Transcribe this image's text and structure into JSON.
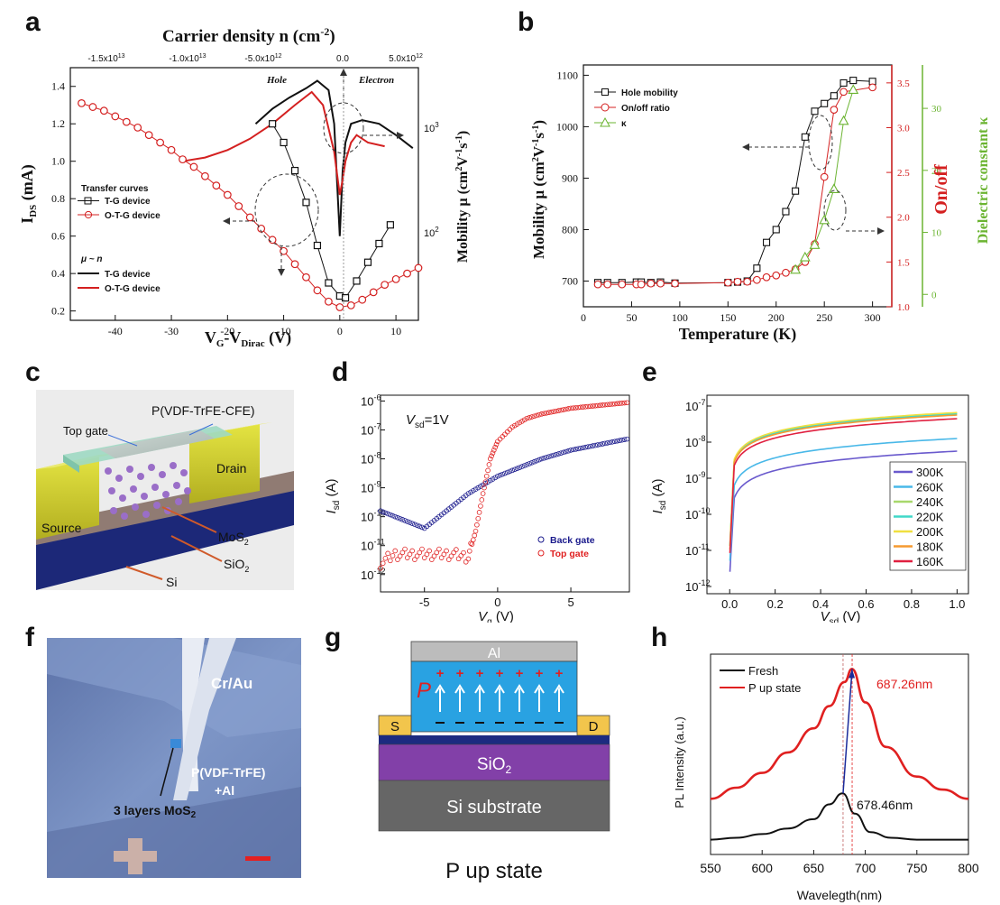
{
  "figure": {
    "panel_labels": [
      "a",
      "b",
      "c",
      "d",
      "e",
      "f",
      "g",
      "h"
    ]
  },
  "panel_a": {
    "top_axis_title": "Carrier density n (cm",
    "top_axis_title_sup": "-2",
    "top_axis_title_end": ")",
    "top_ticks": [
      "-1.5x10",
      "-1.0x10",
      "-5.0x10",
      "0.0",
      "5.0x10"
    ],
    "top_ticks_exp": [
      "13",
      "13",
      "12",
      "",
      "12"
    ],
    "hole_label": "Hole",
    "electron_label": "Electron",
    "ylabel_left": "I",
    "ylabel_left_sub": "DS",
    "ylabel_left_unit": " (mA)",
    "ylabel_right": "Mobility μ (cm",
    "ylabel_right_end": "V",
    "ylabel_right_end2": "s",
    "xlabel": "V",
    "xlabel_sub1": "G",
    "xlabel_mid": "-V",
    "xlabel_sub2": "Dirac",
    "xlabel_unit": " (V)",
    "legend_title1": "Transfer curves",
    "legend_items1": [
      "T-G device",
      "O-T-G device"
    ],
    "legend_title2": "μ ~ n",
    "legend_items2": [
      "T-G device",
      "O-T-G device"
    ],
    "right_ticks": [
      "10",
      "10"
    ],
    "right_ticks_exp": [
      "3",
      "2"
    ],
    "colors": {
      "black": "#111111",
      "red": "#d42020"
    }
  },
  "panel_b": {
    "legend": [
      "Hole mobility",
      "On/off ratio",
      "κ"
    ],
    "ylabel_left": "Mobility μ (cm",
    "ylabel_right1": "On/off",
    "ylabel_right2": "Dielectric constant κ",
    "xlabel": "Temperature (K)",
    "colors": {
      "black": "#111111",
      "red": "#d42020",
      "green": "#6bb431"
    }
  },
  "panel_c": {
    "labels": [
      "P(VDF-TrFE-CFE)",
      "Top gate",
      "Drain",
      "Source",
      "MoS",
      "SiO",
      "Si"
    ],
    "subs": [
      "2",
      "2"
    ]
  },
  "panel_d": {
    "annotation": "V",
    "annotation_sub": "sd",
    "annotation_end": "=1V",
    "ylabel": "I",
    "ylabel_sub": "sd",
    "ylabel_unit": " (A)",
    "xlabel": "V",
    "xlabel_sub": "g",
    "xlabel_unit": " (V)",
    "legend": [
      "Back gate",
      "Top gate"
    ],
    "colors": {
      "blue": "#1a1a8c",
      "red": "#e02020"
    }
  },
  "panel_e": {
    "ylabel": "I",
    "ylabel_sub": "sd",
    "ylabel_unit": " (A)",
    "xlabel": "V",
    "xlabel_sub": "sd",
    "xlabel_unit": " (V)",
    "legend": [
      "300K",
      "260K",
      "240K",
      "220K",
      "200K",
      "180K",
      "160K"
    ],
    "colors": [
      "#6a5acd",
      "#49b8e8",
      "#a8d86c",
      "#40d8c8",
      "#f0e040",
      "#f59a30",
      "#e02040"
    ]
  },
  "panel_f": {
    "labels": [
      "Cr/Au",
      "P(VDF-TrFE)",
      "+Al",
      "3 layers MoS"
    ],
    "sub": "2"
  },
  "panel_g": {
    "labels": [
      "Al",
      "P",
      "S",
      "D",
      "SiO",
      "Si substrate"
    ],
    "sub": "2",
    "caption": "P up state"
  },
  "panel_h": {
    "legend": [
      "Fresh",
      "P up state"
    ],
    "peak1": "687.26nm",
    "peak2": "678.46nm",
    "ylabel": "PL Intensity (a.u.)",
    "xlabel": "Wavelegth(nm)",
    "colors": {
      "black": "#111111",
      "red": "#e02020"
    }
  },
  "chart_data": [
    {
      "id": "a",
      "type": "line",
      "title": "",
      "xlabel": "VG-VDirac (V)",
      "ylabel": "IDS (mA)",
      "xlim": [
        -48,
        14
      ],
      "ylim": [
        0.15,
        1.5
      ],
      "x_ticks": [
        -40,
        -30,
        -20,
        -10,
        0,
        10
      ],
      "y_ticks": [
        0.2,
        0.4,
        0.6,
        0.8,
        1.0,
        1.2,
        1.4
      ],
      "series": [
        {
          "name": "T-G device (transfer)",
          "color": "#111111",
          "marker": "square",
          "x": [
            -12,
            -10,
            -8,
            -6,
            -4,
            -2,
            0,
            1,
            3,
            5,
            7,
            9
          ],
          "y": [
            1.2,
            1.1,
            0.95,
            0.78,
            0.55,
            0.35,
            0.28,
            0.27,
            0.36,
            0.46,
            0.56,
            0.66
          ]
        },
        {
          "name": "O-T-G device (transfer)",
          "color": "#d42020",
          "marker": "circle",
          "x": [
            -46,
            -44,
            -42,
            -40,
            -38,
            -36,
            -34,
            -32,
            -30,
            -28,
            -26,
            -24,
            -22,
            -20,
            -18,
            -16,
            -14,
            -12,
            -10,
            -8,
            -6,
            -4,
            -2,
            0,
            2,
            4,
            6,
            8,
            10,
            12,
            14
          ],
          "y": [
            1.31,
            1.29,
            1.27,
            1.24,
            1.21,
            1.18,
            1.14,
            1.1,
            1.06,
            1.01,
            0.97,
            0.92,
            0.87,
            0.82,
            0.76,
            0.7,
            0.64,
            0.58,
            0.52,
            0.45,
            0.38,
            0.31,
            0.25,
            0.22,
            0.23,
            0.26,
            0.3,
            0.34,
            0.37,
            0.4,
            0.43
          ]
        },
        {
          "name": "T-G device (μ~n)",
          "color": "#111111",
          "marker": "none",
          "x": [
            -15,
            -12,
            -9,
            -6,
            -4,
            -2,
            -1,
            0,
            0.5,
            1,
            2,
            4,
            7,
            10,
            13
          ],
          "y": [
            1.2,
            1.28,
            1.34,
            1.39,
            1.43,
            1.38,
            1.2,
            0.6,
            0.95,
            1.1,
            1.2,
            1.22,
            1.2,
            1.14,
            1.07
          ]
        },
        {
          "name": "O-T-G device (μ~n)",
          "color": "#d42020",
          "marker": "none",
          "x": [
            -28,
            -24,
            -20,
            -16,
            -12,
            -8,
            -5,
            -3,
            -1,
            0,
            0.5,
            1,
            2,
            3,
            5,
            8
          ],
          "y": [
            1.0,
            1.02,
            1.06,
            1.12,
            1.2,
            1.3,
            1.37,
            1.3,
            1.05,
            0.82,
            0.9,
            1.0,
            1.1,
            1.14,
            1.1,
            1.08
          ]
        }
      ]
    },
    {
      "id": "b",
      "type": "line",
      "xlabel": "Temperature (K)",
      "ylabel": "Mobility μ (cm2V-1s-1)",
      "xlim": [
        0,
        320
      ],
      "ylim": [
        650,
        1120
      ],
      "x_ticks": [
        0,
        50,
        100,
        150,
        200,
        250,
        300
      ],
      "y_ticks": [
        700,
        800,
        900,
        1000,
        1100
      ],
      "series": [
        {
          "name": "Hole mobility",
          "color": "#111111",
          "marker": "square",
          "x": [
            15,
            25,
            40,
            55,
            60,
            70,
            80,
            95,
            150,
            160,
            170,
            180,
            190,
            200,
            210,
            220,
            230,
            240,
            250,
            260,
            270,
            280,
            300
          ],
          "y": [
            697,
            697,
            697,
            698,
            698,
            697,
            698,
            696,
            697,
            698,
            700,
            725,
            775,
            800,
            835,
            875,
            980,
            1030,
            1045,
            1060,
            1085,
            1090,
            1088
          ]
        },
        {
          "name": "On/off ratio",
          "color": "#d42020",
          "marker": "circle",
          "x": [
            15,
            25,
            40,
            55,
            60,
            70,
            80,
            95,
            150,
            160,
            170,
            180,
            190,
            200,
            210,
            220,
            230,
            240,
            250,
            260,
            270,
            300
          ],
          "y": [
            1.25,
            1.25,
            1.25,
            1.25,
            1.25,
            1.26,
            1.26,
            1.26,
            1.27,
            1.28,
            1.28,
            1.3,
            1.33,
            1.35,
            1.38,
            1.42,
            1.5,
            1.7,
            2.45,
            3.2,
            3.4,
            3.45
          ]
        },
        {
          "name": "κ",
          "color": "#6bb431",
          "marker": "triangle",
          "x": [
            220,
            230,
            240,
            250,
            260,
            270,
            280
          ],
          "y": [
            4,
            6,
            8,
            12,
            17,
            28,
            33
          ]
        }
      ],
      "y2": {
        "label": "On/off",
        "ticks": [
          1.0,
          1.5,
          2.0,
          2.5,
          3.0,
          3.5
        ],
        "range": [
          1.0,
          3.7
        ]
      },
      "y3": {
        "label": "Dielectric constant κ",
        "ticks": [
          0,
          10,
          20,
          30
        ],
        "range": [
          -2,
          37
        ]
      }
    },
    {
      "id": "d",
      "type": "scatter",
      "xlabel": "Vg (V)",
      "ylabel": "Isd (A)",
      "xlim": [
        -8,
        9
      ],
      "y_log": true,
      "ylim_exp": [
        -12.6,
        -5.8
      ],
      "x_ticks": [
        -5,
        0,
        5
      ],
      "y_ticks_exp": [
        -12,
        -11,
        -10,
        -9,
        -8,
        -7,
        -6
      ],
      "series": [
        {
          "name": "Back gate",
          "color": "#1a1a8c",
          "x": [
            -8,
            -7,
            -6,
            -5,
            -4,
            -3,
            -2,
            -1,
            0,
            1,
            2,
            3,
            4,
            5,
            6,
            7,
            8,
            9
          ],
          "y_exp": [
            -9.8,
            -10.0,
            -10.2,
            -10.4,
            -10.0,
            -9.6,
            -9.2,
            -8.9,
            -8.6,
            -8.4,
            -8.2,
            -8.0,
            -7.85,
            -7.7,
            -7.6,
            -7.5,
            -7.4,
            -7.3
          ]
        },
        {
          "name": "Top gate",
          "color": "#e02020",
          "x": [
            -8,
            -7,
            -6,
            -5,
            -4,
            -3,
            -2,
            -1.5,
            -1,
            -0.5,
            0,
            1,
            2,
            3,
            4,
            5,
            6,
            7,
            8,
            9
          ],
          "y_exp": [
            -11.6,
            -11.3,
            -11.3,
            -11.3,
            -11.3,
            -11.3,
            -11.4,
            -10.5,
            -9.2,
            -8.0,
            -7.4,
            -6.9,
            -6.6,
            -6.45,
            -6.35,
            -6.25,
            -6.2,
            -6.15,
            -6.1,
            -6.05
          ]
        }
      ]
    },
    {
      "id": "e",
      "type": "line",
      "xlabel": "Vsd (V)",
      "ylabel": "Isd (A)",
      "xlim": [
        -0.1,
        1.05
      ],
      "y_log": true,
      "ylim_exp": [
        -12.2,
        -6.7
      ],
      "x_ticks": [
        0.0,
        0.2,
        0.4,
        0.6,
        0.8,
        1.0
      ],
      "y_ticks_exp": [
        -12,
        -11,
        -10,
        -9,
        -8,
        -7
      ],
      "series": [
        {
          "name": "300K",
          "color": "#6a5acd",
          "final_exp": -8.25,
          "start_exp": -11.7
        },
        {
          "name": "260K",
          "color": "#49b8e8",
          "final_exp": -7.9,
          "start_exp": -11.4
        },
        {
          "name": "240K",
          "color": "#a8d86c",
          "final_exp": -7.2,
          "start_exp": -11.0
        },
        {
          "name": "220K",
          "color": "#40d8c8",
          "final_exp": -7.22,
          "start_exp": -11.0
        },
        {
          "name": "200K",
          "color": "#f0e040",
          "final_exp": -7.18,
          "start_exp": -11.0
        },
        {
          "name": "180K",
          "color": "#f59a30",
          "final_exp": -7.25,
          "start_exp": -11.1
        },
        {
          "name": "160K",
          "color": "#e02040",
          "final_exp": -7.35,
          "start_exp": -11.2
        }
      ]
    },
    {
      "id": "h",
      "type": "line",
      "xlabel": "Wavelegth(nm)",
      "ylabel": "PL Intensity (a.u.)",
      "xlim": [
        550,
        800
      ],
      "x_ticks": [
        550,
        600,
        650,
        700,
        750,
        800
      ],
      "series": [
        {
          "name": "Fresh",
          "color": "#111111",
          "peak": 678.46,
          "x": [
            550,
            575,
            600,
            625,
            650,
            665,
            678,
            690,
            705,
            725,
            750,
            800
          ],
          "y": [
            0.08,
            0.09,
            0.11,
            0.14,
            0.19,
            0.27,
            0.33,
            0.22,
            0.12,
            0.09,
            0.08,
            0.08
          ]
        },
        {
          "name": "P up state",
          "color": "#e02020",
          "peak": 687.26,
          "x": [
            550,
            575,
            600,
            625,
            650,
            665,
            680,
            687,
            700,
            720,
            750,
            775,
            800
          ],
          "y": [
            0.3,
            0.36,
            0.44,
            0.55,
            0.68,
            0.8,
            0.93,
            1.0,
            0.82,
            0.58,
            0.42,
            0.35,
            0.3
          ]
        }
      ]
    }
  ]
}
